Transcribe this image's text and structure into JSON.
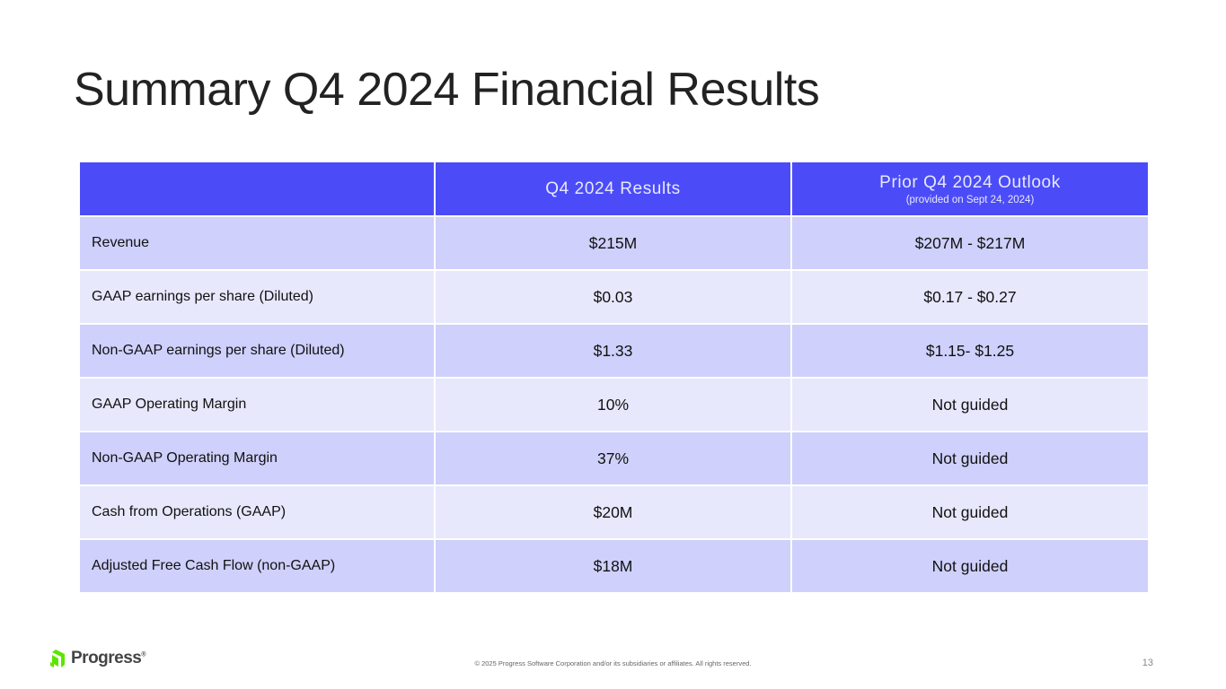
{
  "title": "Summary Q4 2024 Financial Results",
  "table": {
    "headers": [
      "",
      "Q4 2024 Results",
      "Prior Q4 2024 Outlook"
    ],
    "header_sub": "(provided on Sept 24, 2024)",
    "rows": [
      [
        "Revenue",
        "$215M",
        "$207M - $217M"
      ],
      [
        "GAAP earnings per share (Diluted)",
        "$0.03",
        "$0.17 - $0.27"
      ],
      [
        "Non-GAAP earnings per share (Diluted)",
        "$1.33",
        "$1.15- $1.25"
      ],
      [
        "GAAP Operating Margin",
        "10%",
        "Not guided"
      ],
      [
        "Non-GAAP Operating Margin",
        "37%",
        "Not guided"
      ],
      [
        "Cash from Operations (GAAP)",
        "$20M",
        "Not guided"
      ],
      [
        "Adjusted Free Cash Flow (non-GAAP)",
        "$18M",
        "Not guided"
      ]
    ]
  },
  "footer": {
    "logo": "Progress",
    "copyright": "© 2025 Progress Software Corporation and/or its subsidiaries or affiliates. All rights reserved.",
    "page_number": "13"
  },
  "colors": {
    "header": "#4b4cf8",
    "row_odd": "#cfd0fb",
    "row_even": "#e7e8fc",
    "logo_green": "#5ce500"
  }
}
